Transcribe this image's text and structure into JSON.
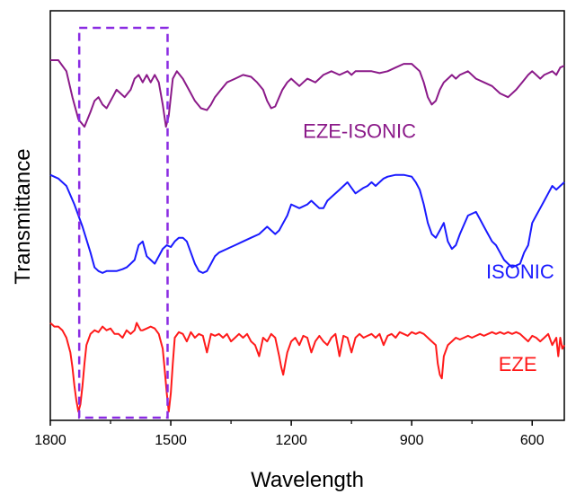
{
  "chart_data": {
    "type": "line",
    "title": "",
    "xlabel": "Wavelength",
    "ylabel": "Transmittance",
    "x_reversed": true,
    "xlim": [
      1800,
      520
    ],
    "ylim": [
      0,
      100
    ],
    "xticks": [
      1800,
      1500,
      1200,
      900,
      600
    ],
    "xtick_labels": [
      "1800",
      "1500",
      "1200",
      "900",
      "600"
    ],
    "yticks_shown": false,
    "highlight_box": {
      "x_from": 1728,
      "x_to": 1508,
      "color": "#8a2be2",
      "style": "dashed"
    },
    "series": [
      {
        "name": "EZE-ISONIC",
        "color": "#8b1a89",
        "label_x": 1030,
        "label_y": 71,
        "x": [
          1800,
          1780,
          1760,
          1745,
          1730,
          1715,
          1700,
          1690,
          1680,
          1670,
          1660,
          1645,
          1635,
          1625,
          1615,
          1600,
          1590,
          1580,
          1570,
          1560,
          1550,
          1540,
          1530,
          1520,
          1512,
          1505,
          1495,
          1485,
          1470,
          1455,
          1440,
          1425,
          1410,
          1400,
          1390,
          1375,
          1360,
          1340,
          1320,
          1300,
          1285,
          1270,
          1260,
          1250,
          1240,
          1230,
          1222,
          1210,
          1200,
          1190,
          1180,
          1170,
          1160,
          1150,
          1140,
          1130,
          1120,
          1100,
          1080,
          1060,
          1050,
          1040,
          1020,
          1000,
          980,
          960,
          940,
          920,
          900,
          880,
          870,
          860,
          850,
          840,
          830,
          820,
          810,
          800,
          790,
          780,
          760,
          740,
          720,
          700,
          680,
          660,
          640,
          625,
          610,
          600,
          590,
          580,
          570,
          560,
          550,
          540,
          530,
          520
        ],
        "values": [
          92,
          92,
          89,
          82,
          76,
          74,
          78,
          81,
          82,
          80,
          79,
          82,
          84,
          83,
          82,
          84,
          87,
          88,
          86,
          88,
          86,
          88,
          86,
          80,
          74,
          77,
          87,
          89,
          87,
          84,
          81,
          79,
          78.5,
          80,
          82,
          84,
          86,
          87,
          88,
          87.5,
          86,
          84,
          81,
          79,
          79.5,
          82,
          84,
          86,
          87,
          86,
          85,
          86,
          87,
          86.5,
          86,
          87,
          88,
          89,
          88,
          89,
          88,
          89,
          89,
          89,
          88.5,
          89,
          90,
          91,
          91,
          89,
          86,
          82,
          80,
          81,
          84,
          86,
          87,
          88,
          87,
          88,
          89,
          87,
          86,
          85,
          83,
          82,
          84,
          86,
          88,
          89,
          88,
          87,
          88,
          88.5,
          89,
          88,
          90,
          90.5
        ]
      },
      {
        "name": "ISONIC",
        "color": "#1a1aff",
        "label_x": 630,
        "label_y": 33,
        "x": [
          1800,
          1780,
          1760,
          1740,
          1720,
          1700,
          1690,
          1680,
          1670,
          1660,
          1650,
          1635,
          1620,
          1610,
          1600,
          1590,
          1580,
          1570,
          1560,
          1550,
          1540,
          1530,
          1520,
          1510,
          1500,
          1490,
          1480,
          1470,
          1460,
          1450,
          1440,
          1430,
          1420,
          1410,
          1400,
          1390,
          1380,
          1360,
          1340,
          1320,
          1300,
          1280,
          1260,
          1250,
          1240,
          1230,
          1220,
          1210,
          1200,
          1180,
          1160,
          1150,
          1140,
          1130,
          1120,
          1110,
          1100,
          1080,
          1060,
          1040,
          1020,
          1010,
          1000,
          990,
          980,
          970,
          960,
          940,
          920,
          900,
          890,
          880,
          870,
          860,
          850,
          840,
          830,
          820,
          810,
          800,
          790,
          780,
          760,
          740,
          730,
          720,
          710,
          700,
          690,
          680,
          670,
          660,
          650,
          640,
          630,
          620,
          610,
          600,
          590,
          580,
          570,
          560,
          550,
          540,
          530,
          520
        ],
        "values": [
          61,
          60,
          58,
          53,
          47,
          40,
          36,
          35,
          34.5,
          35,
          35,
          35,
          35.5,
          36,
          37,
          38,
          42,
          43,
          39,
          38,
          37,
          39,
          41,
          42,
          41.5,
          43,
          44,
          44,
          43,
          40,
          37,
          35,
          34.5,
          35,
          37,
          39,
          40,
          41,
          42,
          43,
          44,
          45,
          47,
          46,
          45,
          46,
          48,
          50,
          53,
          52,
          53,
          54,
          53,
          52,
          52,
          54,
          55,
          57,
          59,
          56,
          57.5,
          58,
          59,
          58,
          59,
          60,
          60.5,
          61,
          61,
          60.5,
          59,
          57,
          53,
          48,
          45,
          44,
          46,
          48,
          43,
          41,
          42,
          45,
          50,
          51,
          49,
          47,
          45,
          43,
          42,
          40,
          38,
          37,
          36,
          36.5,
          37,
          40,
          42,
          48,
          50,
          52,
          54,
          56,
          58,
          57,
          58,
          59
        ]
      },
      {
        "name": "EZE",
        "color": "#ff1a1a",
        "label_x": 636,
        "label_y": 8,
        "x": [
          1800,
          1790,
          1780,
          1770,
          1760,
          1750,
          1745,
          1740,
          1735,
          1730,
          1725,
          1720,
          1715,
          1710,
          1700,
          1690,
          1680,
          1670,
          1660,
          1650,
          1640,
          1630,
          1620,
          1610,
          1600,
          1590,
          1585,
          1580,
          1575,
          1570,
          1560,
          1550,
          1540,
          1530,
          1520,
          1515,
          1510,
          1505,
          1500,
          1495,
          1490,
          1480,
          1470,
          1460,
          1450,
          1440,
          1430,
          1420,
          1410,
          1400,
          1390,
          1380,
          1370,
          1360,
          1350,
          1340,
          1330,
          1320,
          1310,
          1300,
          1290,
          1280,
          1270,
          1260,
          1250,
          1240,
          1230,
          1225,
          1220,
          1215,
          1210,
          1200,
          1190,
          1180,
          1170,
          1160,
          1150,
          1140,
          1130,
          1120,
          1110,
          1100,
          1090,
          1080,
          1070,
          1060,
          1050,
          1040,
          1030,
          1020,
          1010,
          1000,
          990,
          980,
          970,
          960,
          950,
          940,
          930,
          920,
          910,
          900,
          890,
          880,
          870,
          860,
          850,
          840,
          835,
          830,
          825,
          820,
          810,
          800,
          790,
          780,
          770,
          760,
          750,
          740,
          730,
          720,
          710,
          700,
          690,
          680,
          670,
          660,
          650,
          640,
          630,
          620,
          610,
          600,
          590,
          580,
          570,
          560,
          550,
          540,
          535,
          530,
          525,
          520
        ],
        "values": [
          21,
          20,
          20,
          19,
          17,
          13,
          9,
          4,
          0,
          -3,
          -1,
          4,
          10,
          15,
          18,
          19,
          18.5,
          20,
          19,
          19.5,
          18,
          18,
          17,
          19,
          18,
          19,
          21,
          20,
          19,
          19,
          19.5,
          20,
          19.5,
          18,
          14,
          8,
          2,
          -3,
          2,
          10,
          17,
          18.5,
          18,
          16,
          18.5,
          17,
          18,
          17.5,
          13,
          18,
          17.5,
          18,
          17,
          18,
          16,
          17,
          18,
          17,
          18,
          16,
          15,
          12,
          17,
          16,
          18,
          17,
          12,
          9,
          7,
          10,
          13,
          16,
          17,
          15,
          17.5,
          17,
          13,
          16,
          17.5,
          16,
          15,
          17,
          18,
          12,
          17.5,
          17,
          13,
          17,
          18,
          17,
          17.5,
          18,
          17,
          18,
          15,
          17.5,
          18,
          17,
          18.5,
          18,
          17.5,
          18.5,
          18,
          18.5,
          18,
          17,
          16,
          15,
          10,
          7,
          6,
          12,
          15,
          16,
          17,
          16.5,
          17,
          17.5,
          17,
          17.5,
          18,
          17.5,
          18,
          18.5,
          18,
          18.5,
          18,
          18.5,
          18,
          18.5,
          18,
          17,
          16,
          17.5,
          17,
          16,
          17,
          18,
          15,
          17,
          12,
          17,
          14,
          15
        ]
      }
    ]
  }
}
